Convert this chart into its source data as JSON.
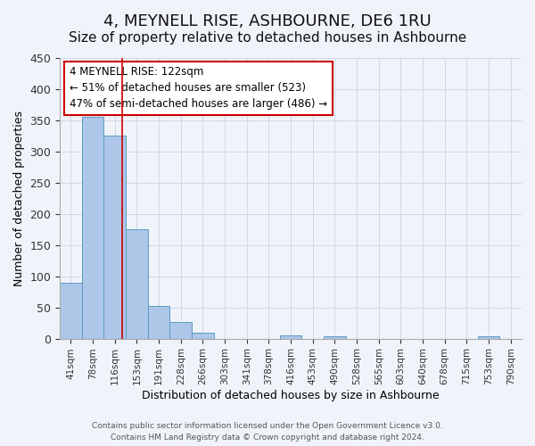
{
  "title": "4, MEYNELL RISE, ASHBOURNE, DE6 1RU",
  "subtitle": "Size of property relative to detached houses in Ashbourne",
  "xlabel": "Distribution of detached houses by size in Ashbourne",
  "ylabel": "Number of detached properties",
  "bins": [
    "41sqm",
    "78sqm",
    "116sqm",
    "153sqm",
    "191sqm",
    "228sqm",
    "266sqm",
    "303sqm",
    "341sqm",
    "378sqm",
    "416sqm",
    "453sqm",
    "490sqm",
    "528sqm",
    "565sqm",
    "603sqm",
    "640sqm",
    "678sqm",
    "715sqm",
    "753sqm",
    "790sqm"
  ],
  "values": [
    90,
    355,
    325,
    175,
    53,
    27,
    9,
    0,
    0,
    0,
    5,
    0,
    4,
    0,
    0,
    0,
    0,
    0,
    0,
    3,
    0
  ],
  "bar_color": "#aec6e8",
  "bar_edge_color": "#5a9ac5",
  "vline_x_index": 2.33,
  "vline_color": "#cc0000",
  "ylim": [
    0,
    450
  ],
  "yticks": [
    0,
    50,
    100,
    150,
    200,
    250,
    300,
    350,
    400,
    450
  ],
  "annotation_text": "4 MEYNELL RISE: 122sqm\n← 51% of detached houses are smaller (523)\n47% of semi-detached houses are larger (486) →",
  "annotation_box_color": "#ffffff",
  "annotation_box_edge": "#cc0000",
  "footer1": "Contains HM Land Registry data © Crown copyright and database right 2024.",
  "footer2": "Contains public sector information licensed under the Open Government Licence v3.0.",
  "bg_color": "#f0f4fa",
  "grid_color": "#d0d8e8",
  "title_fontsize": 13,
  "subtitle_fontsize": 11
}
